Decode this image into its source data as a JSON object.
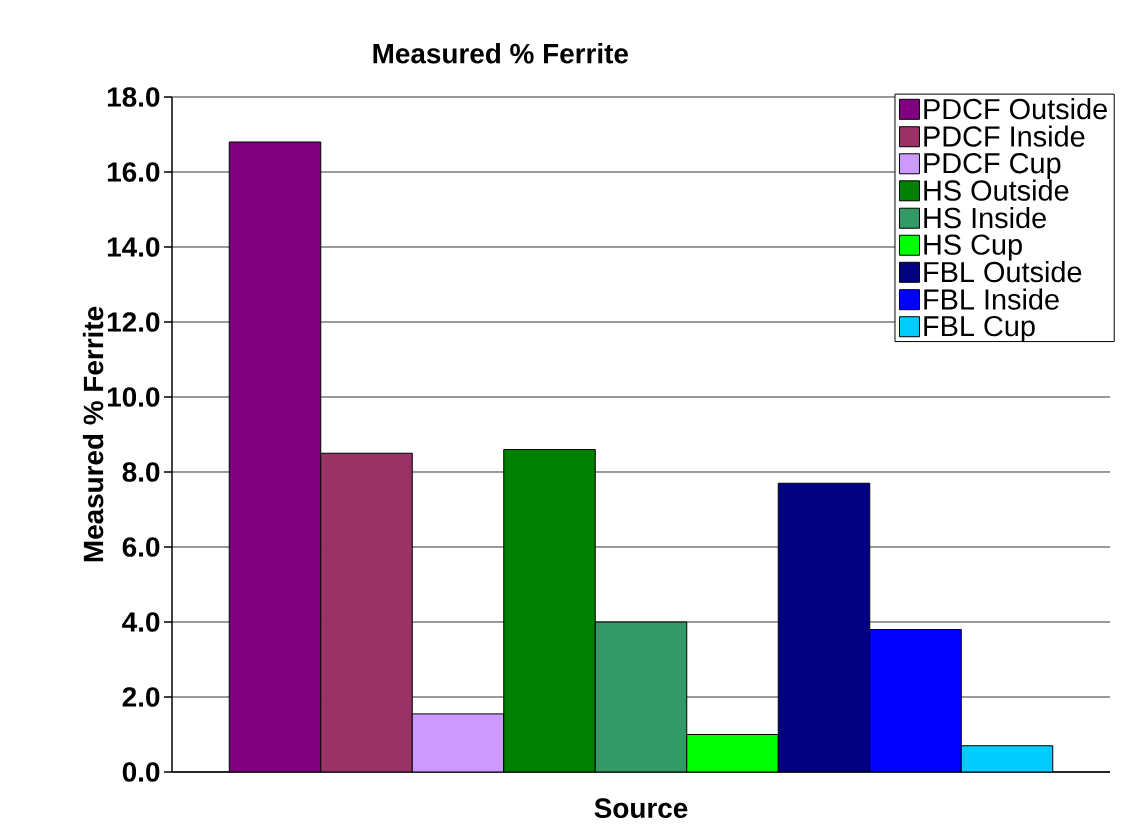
{
  "chart_data": {
    "type": "bar",
    "title": "Measured % Ferrite",
    "xlabel": "Source",
    "ylabel": "Measured % Ferrite",
    "categories": [
      null
    ],
    "series": [
      {
        "name": "PDCF Outside",
        "color": "#800080",
        "values": [
          16.8
        ]
      },
      {
        "name": "PDCF Inside",
        "color": "#993366",
        "values": [
          8.5
        ]
      },
      {
        "name": "PDCF Cup",
        "color": "#cc99ff",
        "values": [
          1.55
        ]
      },
      {
        "name": "HS Outside",
        "color": "#008000",
        "values": [
          8.6
        ]
      },
      {
        "name": "HS Inside",
        "color": "#339966",
        "values": [
          4.0
        ]
      },
      {
        "name": "HS Cup",
        "color": "#00ff00",
        "values": [
          1.0
        ]
      },
      {
        "name": "FBL Outside",
        "color": "#000080",
        "values": [
          7.7
        ]
      },
      {
        "name": "FBL Inside",
        "color": "#0000ff",
        "values": [
          3.8
        ]
      },
      {
        "name": "FBL Cup",
        "color": "#00ccff",
        "values": [
          0.7
        ]
      }
    ],
    "ylim": [
      0,
      18
    ],
    "yticks": [
      {
        "value": 0,
        "label": "0.0"
      },
      {
        "value": 2,
        "label": "2.0"
      },
      {
        "value": 4,
        "label": "4.0"
      },
      {
        "value": 6,
        "label": "6.0"
      },
      {
        "value": 8,
        "label": "8.0"
      },
      {
        "value": 10,
        "label": "10.0"
      },
      {
        "value": 12,
        "label": "12.0"
      },
      {
        "value": 14,
        "label": "14.0"
      },
      {
        "value": 16,
        "label": "16.0"
      },
      {
        "value": 18,
        "label": "18.0"
      }
    ],
    "grid": "y",
    "legend": "top right"
  }
}
